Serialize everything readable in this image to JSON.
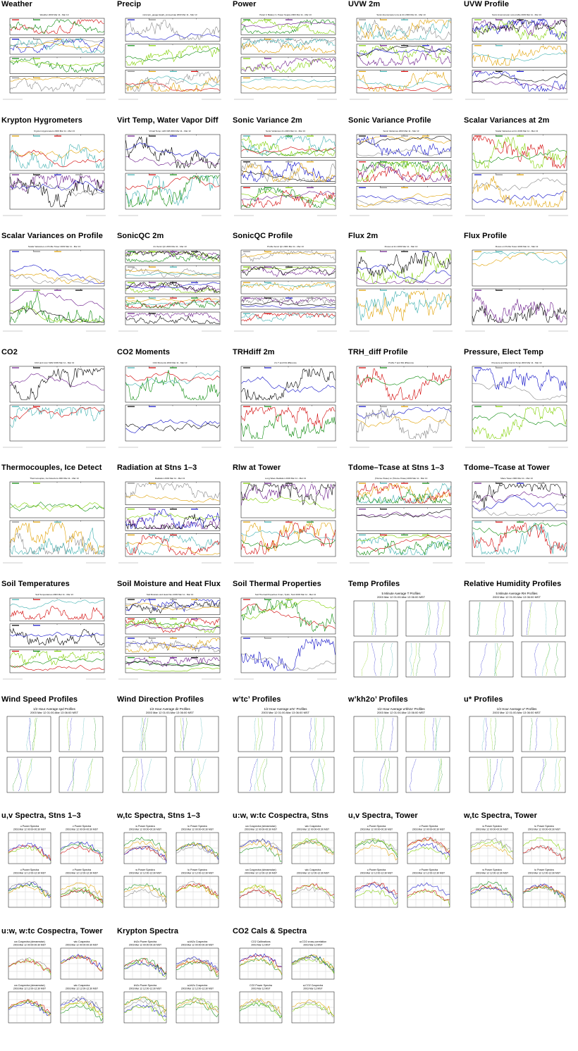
{
  "page": {
    "background": "#ffffff"
  },
  "palette": [
    "#d10000",
    "#1010c8",
    "#0a8a0a",
    "#8a8a8a",
    "#7fd000",
    "#e0a000",
    "#6a1a8a",
    "#3fb0b0",
    "#000000"
  ],
  "tiles": [
    {
      "title": "Weather",
      "kind": "ts",
      "panels": 4,
      "subtitle": "Weather 2003 Mar 11 - Mar 13"
    },
    {
      "title": "Precip",
      "kind": "ts",
      "panels": 3,
      "subtitle": "rainr,tpm_guage,height_snow,etnap 2003 Mar 11 - Mar 13"
    },
    {
      "title": "Power",
      "kind": "ts",
      "panels": 4,
      "subtitle": "Panel V, Battery V, Power Supply 2003 Mar 11 - Mar 13"
    },
    {
      "title": "UVW 2m",
      "kind": "ts",
      "panels": 3,
      "subtitle": "Sonic Anemometer uvw at 2m 2003 Mar 11 - Mar 13"
    },
    {
      "title": "UVW Profile",
      "kind": "ts",
      "panels": 3,
      "subtitle": "Sonic Anemometer uvw profile 2003 Mar 11 - Mar 13"
    },
    {
      "title": "Krypton Hygrometers",
      "kind": "ts",
      "panels": 2,
      "subtitle": "Krypton Hygrometers 2003 Mar 11 - Mar 13"
    },
    {
      "title": "Virt Temp, Water Vapor Diff",
      "kind": "ts",
      "panels": 2,
      "subtitle": "Virtual Temp, H2O Diff 2003 Mar 11 - Mar 13"
    },
    {
      "title": "Sonic Variance 2m",
      "kind": "ts",
      "panels": 3,
      "subtitle": "Sonic Variances 2m 2003 Mar 11 - Mar 13"
    },
    {
      "title": "Sonic Variance Profile",
      "kind": "ts",
      "panels": 3,
      "subtitle": "Sonic Variances 2003 Mar 11 - Mar 13"
    },
    {
      "title": "Scalar Variances at 2m",
      "kind": "ts",
      "panels": 2,
      "subtitle": "Scalar Variances at 2m 2003 Mar 11 - Mar 13"
    },
    {
      "title": "Scalar Variances on Profile",
      "kind": "ts",
      "panels": 2,
      "subtitle": "Scalar Variances on Profile Tower 2003 Mar 11 - Mar 13"
    },
    {
      "title": "SonicQC 2m",
      "kind": "ts",
      "panels": 5,
      "subtitle": "2m Sonic QC 2003 Mar 11 - Mar 13"
    },
    {
      "title": "SonicQC Profile",
      "kind": "ts",
      "panels": 5,
      "subtitle": "Profile Sonic QC 2003 Mar 11 - Mar 13"
    },
    {
      "title": "Flux 2m",
      "kind": "ts",
      "panels": 2,
      "subtitle": "Fluxes at 2m 2003 Mar 11 - Mar 13"
    },
    {
      "title": "Flux Profile",
      "kind": "ts",
      "panels": 2,
      "subtitle": "Fluxes on Profile Tower 2003 Mar 11 - Mar 13"
    },
    {
      "title": "CO2",
      "kind": "ts",
      "panels": 2,
      "subtitle": "CO2 and Licor 6262 2003 Mar 11 - Mar 13"
    },
    {
      "title": "CO2 Moments",
      "kind": "ts",
      "panels": 2,
      "subtitle": "CO2 Moments 2003 Mar 11 - Mar 13"
    },
    {
      "title": "TRHdiff 2m",
      "kind": "ts",
      "panels": 2,
      "subtitle": "2m T and RH difference"
    },
    {
      "title": "TRH_diff Profile",
      "kind": "ts",
      "panels": 2,
      "subtitle": "Profile T and RH difference"
    },
    {
      "title": "Pressure, Elect Temp",
      "kind": "ts",
      "panels": 2,
      "subtitle": "Pressure and Electronics Temp 2003 Mar 11 - Mar 13"
    },
    {
      "title": "Thermocouples, Ice Detect",
      "kind": "ts",
      "panels": 2,
      "subtitle": "Thermocouples, Ice Detectors 2003 Mar 11 - Mar 13"
    },
    {
      "title": "Radiation at Stns 1–3",
      "kind": "ts",
      "panels": 3,
      "subtitle": "Radiation 2003 Mar 11 - Mar 13"
    },
    {
      "title": "Rlw at Tower",
      "kind": "ts",
      "panels": 2,
      "subtitle": "Long Wave Radiation 2003 Mar 11 - Mar 13"
    },
    {
      "title": "Tdome–Tcase at Stns 1–3",
      "kind": "ts",
      "panels": 3,
      "subtitle": "(Tdome-Tcase) vs (Tdome-Tcase) 2003 Mar 11 - Mar 13"
    },
    {
      "title": "Tdome–Tcase at Tower",
      "kind": "ts",
      "panels": 2,
      "subtitle": "Mace Tower 2003 Mar 11 - Mar 13"
    },
    {
      "title": "Soil Temperatures",
      "kind": "ts",
      "panels": 3,
      "subtitle": "Soil Temperatures 2003 Mar 11 - Mar 13"
    },
    {
      "title": "Soil Moisture and Heat Flux",
      "kind": "ts",
      "panels": 4,
      "subtitle": "Soil Moisture and Heat Flux 2003 Mar 11 - Mar 13"
    },
    {
      "title": "Soil Thermal Properties",
      "kind": "ts",
      "panels": 2,
      "subtitle": "Soil Thermal Properties Vmax, Tpdm, Tsoil 2003 Mar 11 - Mar 13"
    },
    {
      "title": "Temp Profiles",
      "kind": "prof",
      "subtitle": "5 Minute Average T Profiles",
      "subtitle2": "2003 Mar 12 01:00-Mar 13 06:00 MST"
    },
    {
      "title": "Relative Humidity Profiles",
      "kind": "prof",
      "subtitle": "5 Minute Average RH Profiles",
      "subtitle2": "2003 Mar 12 01:00-Mar 13 06:00 MST"
    },
    {
      "title": "Wind Speed Profiles",
      "kind": "prof",
      "subtitle": "1/2 Hour Average spd Profiles",
      "subtitle2": "2003 Mar 12 01:00-Mar 13 06:00 MST"
    },
    {
      "title": "Wind Direction Profiles",
      "kind": "prof",
      "subtitle": "1/2 Hour Average dir Profiles",
      "subtitle2": "2003 Mar 12 01:00-Mar 13 06:00 MST"
    },
    {
      "title": "w’tc’ Profiles",
      "kind": "prof",
      "subtitle": "1/2 Hour Average w'tc' Profiles",
      "subtitle2": "2003 Mar 12 01:00-Mar 13 06:00 MST"
    },
    {
      "title": "w’kh2o’ Profiles",
      "kind": "prof",
      "subtitle": "1/2 Hour Average w'kh2o' Profiles",
      "subtitle2": "2003 Mar 12 01:00-Mar 13 06:00 MST"
    },
    {
      "title": "u* Profiles",
      "kind": "prof",
      "subtitle": "1/2 Hour Average u* Profiles",
      "subtitle2": "2003 Mar 12 01:00-Mar 13 06:00 MST"
    },
    {
      "title": "u,v Spectra, Stns 1–3",
      "kind": "spec",
      "labels": [
        "u Power Spectra",
        "v Power Spectra",
        "u Power Spectra",
        "v Power Spectra"
      ],
      "dates": [
        "2003 Mar 12 00:00-00:30 MST",
        "2003 Mar 12 00:00-00:30 MST",
        "2003 Mar 12 12:00-12:30 MST",
        "2003 Mar 12 12:00-12:30 MST"
      ]
    },
    {
      "title": "w,tc Spectra, Stns 1–3",
      "kind": "spec",
      "labels": [
        "w Power Spectra",
        "tc Power Spectra",
        "w Power Spectra",
        "tc Power Spectra"
      ],
      "dates": [
        "2003 Mar 12 00:00-00:30 MST",
        "2003 Mar 12 00:00-00:30 MST",
        "2003 Mar 12 12:00-12:30 MST",
        "2003 Mar 12 12:00-12:30 MST"
      ]
    },
    {
      "title": "u:w, w:tc Cospectra, Stns",
      "kind": "spec",
      "labels": [
        "uw Cospectra (streamwise)",
        "wtc Cospectra",
        "uw Cospectra (streamwise)",
        "wtc Cospectra"
      ],
      "dates": [
        "2003 Mar 12 00:00-00:30 MST",
        "2003 Mar 12 00:00-00:30 MST",
        "2003 Mar 12 12:00-12:30 MST",
        "2003 Mar 12 12:00-12:30 MST"
      ]
    },
    {
      "title": "u,v Spectra, Tower",
      "kind": "spec",
      "labels": [
        "u Power Spectra",
        "v Power Spectra",
        "u Power Spectra",
        "v Power Spectra"
      ],
      "dates": [
        "2003 Mar 12 00:00-00:30 MST",
        "2003 Mar 12 00:00-00:30 MST",
        "2003 Mar 12 12:00-12:30 MST",
        "2003 Mar 12 12:00-12:30 MST"
      ]
    },
    {
      "title": "w,tc Spectra, Tower",
      "kind": "spec",
      "labels": [
        "w Power Spectra",
        "tc Power Spectra",
        "w Power Spectra",
        "tc Power Spectra"
      ],
      "dates": [
        "2003 Mar 12 00:00-00:30 MST",
        "2003 Mar 12 00:00-00:30 MST",
        "2003 Mar 12 12:00-12:30 MST",
        "2003 Mar 12 12:00-12:30 MST"
      ]
    },
    {
      "title": "u:w, w:tc Cospectra, Tower",
      "kind": "spec",
      "labels": [
        "uw Cospectra (streamwise)",
        "wtc Cospectra",
        "uw Cospectra (streamwise)",
        "wtc Cospectra"
      ],
      "dates": [
        "2003 Mar 12 00:00-00:30 MST",
        "2003 Mar 12 00:00-00:30 MST",
        "2003 Mar 12 12:00-12:30 MST",
        "2003 Mar 12 12:00-12:30 MST"
      ]
    },
    {
      "title": "Krypton Spectra",
      "kind": "spec",
      "labels": [
        "kh2o Power Spectra",
        "w,kh2o Cospectra",
        "kh2o Power Spectra",
        "w,kh2o Cospectra"
      ],
      "dates": [
        "2003 Mar 12 00:00-00:30 MST",
        "2003 Mar 12 00:00-00:30 MST",
        "2003 Mar 12 12:00-12:30 MST",
        "2003 Mar 12 12:00-12:30 MST"
      ]
    },
    {
      "title": "CO2 Cals & Spectra",
      "kind": "spec",
      "labels": [
        "CO2 Calibrations",
        "w,CO2 cross-correlation",
        "CO2 Power Spectra",
        "w,CO2 Cospectra"
      ],
      "dates": [
        "2003 Mar 12 MST",
        "2003 Mar 12 MST",
        "2003 Mar 12 MST",
        "2003 Mar 12 MST"
      ]
    }
  ]
}
